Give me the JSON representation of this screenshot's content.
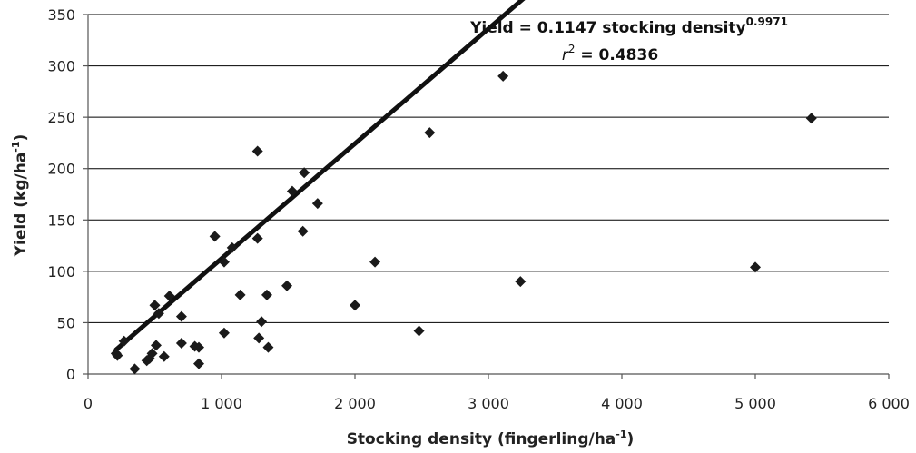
{
  "chart_data": {
    "type": "scatter",
    "xlabel": "Stocking density (fingerling/ha",
    "xlabel_sup": "-1",
    "xlabel_end": ")",
    "ylabel": "Yield (kg/ha",
    "ylabel_sup": "-1",
    "ylabel_end": ")",
    "xlim": [
      0,
      6000
    ],
    "ylim": [
      0,
      350
    ],
    "x_ticks": [
      0,
      1000,
      2000,
      3000,
      4000,
      5000,
      6000
    ],
    "x_tick_labels": [
      "0",
      "1 000",
      "2 000",
      "3 000",
      "4 000",
      "5 000",
      "6 000"
    ],
    "y_ticks": [
      0,
      50,
      100,
      150,
      200,
      250,
      300,
      350
    ],
    "y_tick_labels": [
      "0",
      "50",
      "100",
      "150",
      "200",
      "250",
      "300",
      "350"
    ],
    "grid": "horizontal",
    "marker": "diamond",
    "marker_color": "#1a1a1a",
    "trendline": {
      "equation_main": "Yield = 0.1147 stocking density",
      "equation_exponent": "0.9971",
      "r2_var": "r",
      "r2_sup": "2",
      "r2_value": " = 0.4836",
      "coef": 0.1147,
      "exponent": 0.9971,
      "x_range": [
        210,
        5400
      ],
      "color": "#111111"
    },
    "points": [
      {
        "x": 210,
        "y": 20
      },
      {
        "x": 220,
        "y": 18
      },
      {
        "x": 270,
        "y": 32
      },
      {
        "x": 350,
        "y": 5
      },
      {
        "x": 440,
        "y": 13
      },
      {
        "x": 460,
        "y": 15
      },
      {
        "x": 480,
        "y": 20
      },
      {
        "x": 510,
        "y": 28
      },
      {
        "x": 500,
        "y": 67
      },
      {
        "x": 530,
        "y": 59
      },
      {
        "x": 570,
        "y": 17
      },
      {
        "x": 610,
        "y": 76
      },
      {
        "x": 700,
        "y": 56
      },
      {
        "x": 700,
        "y": 30
      },
      {
        "x": 800,
        "y": 27
      },
      {
        "x": 830,
        "y": 26
      },
      {
        "x": 830,
        "y": 10
      },
      {
        "x": 950,
        "y": 134
      },
      {
        "x": 1020,
        "y": 109
      },
      {
        "x": 1020,
        "y": 40
      },
      {
        "x": 1080,
        "y": 123
      },
      {
        "x": 1140,
        "y": 77
      },
      {
        "x": 1270,
        "y": 217
      },
      {
        "x": 1270,
        "y": 132
      },
      {
        "x": 1280,
        "y": 35
      },
      {
        "x": 1300,
        "y": 51
      },
      {
        "x": 1340,
        "y": 77
      },
      {
        "x": 1350,
        "y": 26
      },
      {
        "x": 1490,
        "y": 86
      },
      {
        "x": 1530,
        "y": 178
      },
      {
        "x": 1610,
        "y": 139
      },
      {
        "x": 1620,
        "y": 196
      },
      {
        "x": 1720,
        "y": 166
      },
      {
        "x": 2000,
        "y": 67
      },
      {
        "x": 2150,
        "y": 109
      },
      {
        "x": 2480,
        "y": 42
      },
      {
        "x": 2560,
        "y": 235
      },
      {
        "x": 3110,
        "y": 290
      },
      {
        "x": 3240,
        "y": 90
      },
      {
        "x": 5000,
        "y": 104
      },
      {
        "x": 5420,
        "y": 249
      }
    ]
  }
}
